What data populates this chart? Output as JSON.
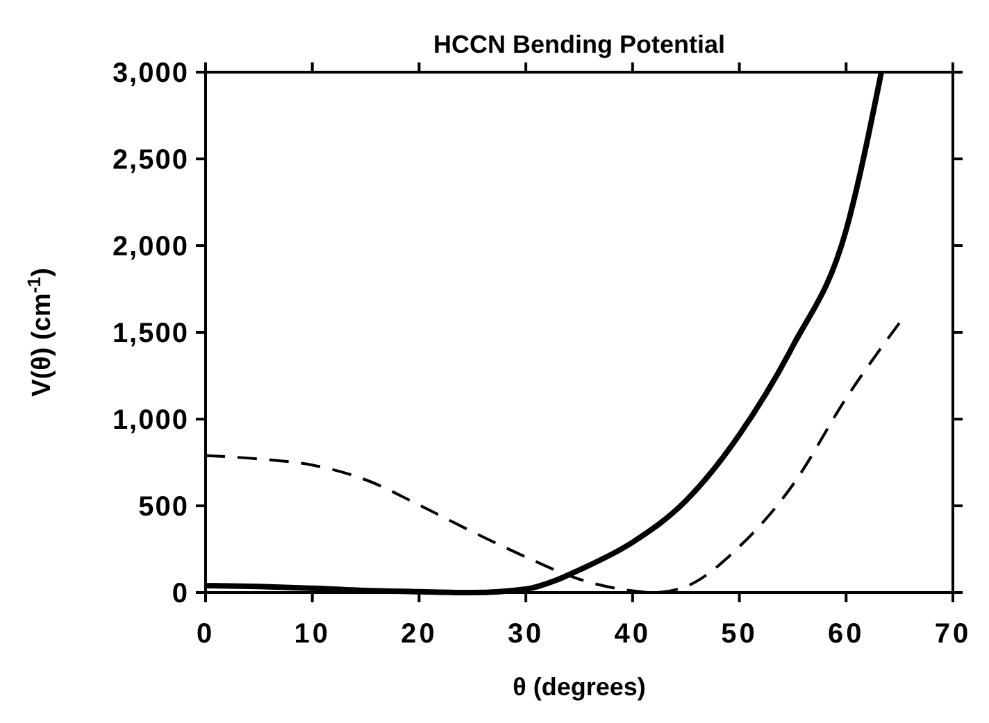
{
  "chart_data": {
    "type": "line",
    "title": "HCCN Bending Potential",
    "xlabel": "θ (degrees)",
    "ylabel": "V(θ) (cm$^{-1}$)",
    "xlim": [
      0,
      70
    ],
    "xticks": [
      0,
      10,
      20,
      30,
      40,
      50,
      60,
      70
    ],
    "ylim": [
      0,
      3000
    ],
    "yticks": [
      {
        "value": 0,
        "label": "0"
      },
      {
        "value": 500,
        "label": "500"
      },
      {
        "value": 1000,
        "label": "1,000"
      },
      {
        "value": 1500,
        "label": "1,500"
      },
      {
        "value": 2000,
        "label": "2,000"
      },
      {
        "value": 2500,
        "label": "2,500"
      },
      {
        "value": 3000,
        "label": "3,000"
      }
    ],
    "grid": false,
    "marker": "none",
    "series": [
      {
        "color": "#000000",
        "line_style": "solid",
        "x": [
          0,
          5,
          10,
          15,
          20,
          25,
          30,
          33,
          35,
          40,
          45,
          50,
          55,
          60,
          63.3
        ],
        "values": [
          40,
          35,
          25,
          12,
          5,
          0,
          20,
          75,
          130,
          290,
          530,
          910,
          1420,
          2090,
          3000
        ]
      },
      {
        "color": "#000000",
        "line_style": "dashed",
        "x": [
          0,
          5,
          10,
          15,
          20,
          25,
          30,
          35,
          40,
          42,
          45,
          50,
          55,
          60,
          65.3
        ],
        "values": [
          790,
          770,
          735,
          650,
          505,
          350,
          205,
          77,
          10,
          0,
          35,
          265,
          620,
          1120,
          1580
        ]
      }
    ]
  }
}
